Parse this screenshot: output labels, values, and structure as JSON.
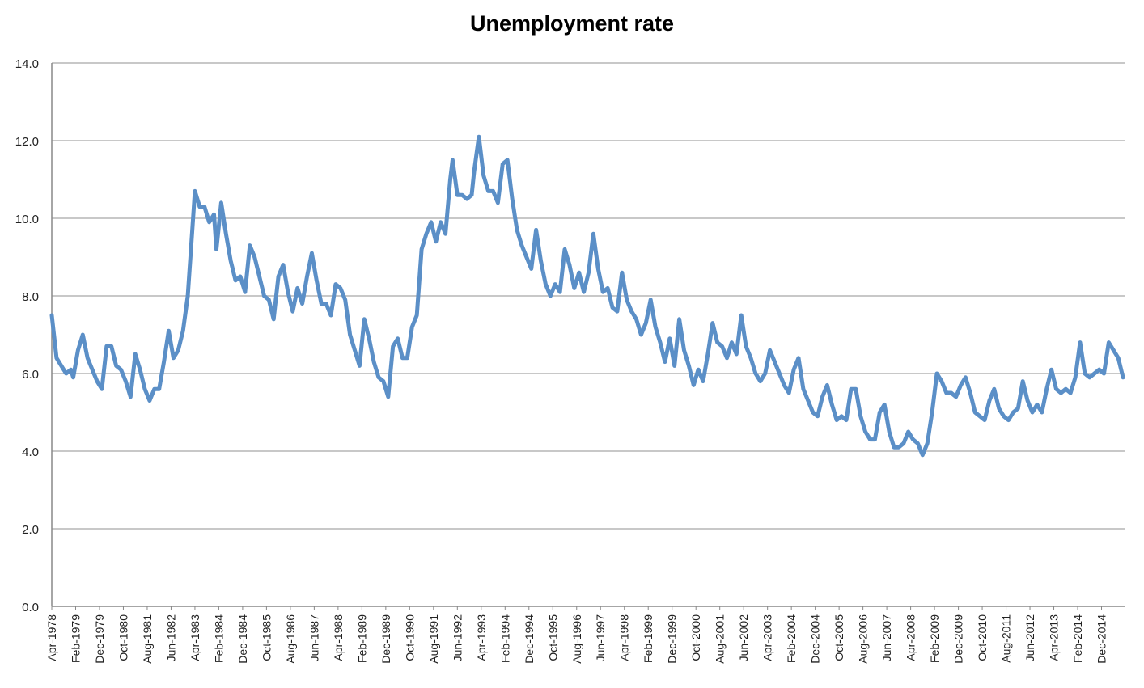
{
  "chart_data": {
    "type": "line",
    "title": "Unemployment rate",
    "xlabel": "",
    "ylabel": "",
    "ylim": [
      0,
      14
    ],
    "y_ticks": [
      "0.0",
      "2.0",
      "4.0",
      "6.0",
      "8.0",
      "10.0",
      "12.0",
      "14.0"
    ],
    "x_tick_labels": [
      "Apr-1978",
      "Feb-1979",
      "Dec-1979",
      "Oct-1980",
      "Aug-1981",
      "Jun-1982",
      "Apr-1983",
      "Feb-1984",
      "Dec-1984",
      "Oct-1985",
      "Aug-1986",
      "Jun-1987",
      "Apr-1988",
      "Feb-1989",
      "Dec-1989",
      "Oct-1990",
      "Aug-1991",
      "Jun-1992",
      "Apr-1993",
      "Feb-1994",
      "Dec-1994",
      "Oct-1995",
      "Aug-1996",
      "Jun-1997",
      "Apr-1998",
      "Feb-1999",
      "Dec-1999",
      "Oct-2000",
      "Aug-2001",
      "Jun-2002",
      "Apr-2003",
      "Feb-2004",
      "Dec-2004",
      "Oct-2005",
      "Aug-2006",
      "Jun-2007",
      "Apr-2008",
      "Feb-2009",
      "Dec-2009",
      "Oct-2010",
      "Aug-2011",
      "Jun-2012",
      "Apr-2013",
      "Feb-2014",
      "Dec-2014"
    ],
    "grid": "horizontal",
    "legend": "none",
    "x_range": [
      "Apr-1978",
      "Oct-2015"
    ],
    "series": [
      {
        "color": "#5b8fc7",
        "points": [
          [
            "1978-04",
            7.5
          ],
          [
            "1978-06",
            6.4
          ],
          [
            "1978-08",
            6.2
          ],
          [
            "1978-10",
            6.0
          ],
          [
            "1978-12",
            6.1
          ],
          [
            "1979-01",
            5.9
          ],
          [
            "1979-03",
            6.6
          ],
          [
            "1979-05",
            7.0
          ],
          [
            "1979-07",
            6.4
          ],
          [
            "1979-09",
            6.1
          ],
          [
            "1979-11",
            5.8
          ],
          [
            "1980-01",
            5.6
          ],
          [
            "1980-03",
            6.7
          ],
          [
            "1980-05",
            6.7
          ],
          [
            "1980-07",
            6.2
          ],
          [
            "1980-09",
            6.1
          ],
          [
            "1980-11",
            5.8
          ],
          [
            "1981-01",
            5.4
          ],
          [
            "1981-03",
            6.5
          ],
          [
            "1981-05",
            6.1
          ],
          [
            "1981-07",
            5.6
          ],
          [
            "1981-09",
            5.3
          ],
          [
            "1981-11",
            5.6
          ],
          [
            "1982-01",
            5.6
          ],
          [
            "1982-03",
            6.3
          ],
          [
            "1982-05",
            7.1
          ],
          [
            "1982-07",
            6.4
          ],
          [
            "1982-09",
            6.6
          ],
          [
            "1982-11",
            7.1
          ],
          [
            "1983-01",
            8.0
          ],
          [
            "1983-03",
            9.8
          ],
          [
            "1983-04",
            10.7
          ],
          [
            "1983-06",
            10.3
          ],
          [
            "1983-08",
            10.3
          ],
          [
            "1983-10",
            9.9
          ],
          [
            "1983-12",
            10.1
          ],
          [
            "1984-01",
            9.2
          ],
          [
            "1984-03",
            10.4
          ],
          [
            "1984-05",
            9.6
          ],
          [
            "1984-07",
            8.9
          ],
          [
            "1984-09",
            8.4
          ],
          [
            "1984-11",
            8.5
          ],
          [
            "1985-01",
            8.1
          ],
          [
            "1985-03",
            9.3
          ],
          [
            "1985-05",
            9.0
          ],
          [
            "1985-07",
            8.5
          ],
          [
            "1985-09",
            8.0
          ],
          [
            "1985-11",
            7.9
          ],
          [
            "1986-01",
            7.4
          ],
          [
            "1986-03",
            8.5
          ],
          [
            "1986-05",
            8.8
          ],
          [
            "1986-07",
            8.1
          ],
          [
            "1986-09",
            7.6
          ],
          [
            "1986-11",
            8.2
          ],
          [
            "1987-01",
            7.8
          ],
          [
            "1987-03",
            8.5
          ],
          [
            "1987-05",
            9.1
          ],
          [
            "1987-07",
            8.4
          ],
          [
            "1987-09",
            7.8
          ],
          [
            "1987-11",
            7.8
          ],
          [
            "1988-01",
            7.5
          ],
          [
            "1988-03",
            8.3
          ],
          [
            "1988-05",
            8.2
          ],
          [
            "1988-07",
            7.9
          ],
          [
            "1988-09",
            7.0
          ],
          [
            "1988-11",
            6.6
          ],
          [
            "1989-01",
            6.2
          ],
          [
            "1989-03",
            7.4
          ],
          [
            "1989-05",
            6.9
          ],
          [
            "1989-07",
            6.3
          ],
          [
            "1989-09",
            5.9
          ],
          [
            "1989-11",
            5.8
          ],
          [
            "1990-01",
            5.4
          ],
          [
            "1990-03",
            6.7
          ],
          [
            "1990-05",
            6.9
          ],
          [
            "1990-07",
            6.4
          ],
          [
            "1990-09",
            6.4
          ],
          [
            "1990-11",
            7.2
          ],
          [
            "1991-01",
            7.5
          ],
          [
            "1991-03",
            9.2
          ],
          [
            "1991-05",
            9.6
          ],
          [
            "1991-07",
            9.9
          ],
          [
            "1991-09",
            9.4
          ],
          [
            "1991-11",
            9.9
          ],
          [
            "1992-01",
            9.6
          ],
          [
            "1992-03",
            11.0
          ],
          [
            "1992-04",
            11.5
          ],
          [
            "1992-06",
            10.6
          ],
          [
            "1992-08",
            10.6
          ],
          [
            "1992-10",
            10.5
          ],
          [
            "1992-12",
            10.6
          ],
          [
            "1993-01",
            11.2
          ],
          [
            "1993-03",
            12.1
          ],
          [
            "1993-05",
            11.1
          ],
          [
            "1993-07",
            10.7
          ],
          [
            "1993-09",
            10.7
          ],
          [
            "1993-11",
            10.4
          ],
          [
            "1994-01",
            11.4
          ],
          [
            "1994-03",
            11.5
          ],
          [
            "1994-05",
            10.5
          ],
          [
            "1994-07",
            9.7
          ],
          [
            "1994-09",
            9.3
          ],
          [
            "1994-11",
            9.0
          ],
          [
            "1995-01",
            8.7
          ],
          [
            "1995-03",
            9.7
          ],
          [
            "1995-05",
            8.9
          ],
          [
            "1995-07",
            8.3
          ],
          [
            "1995-09",
            8.0
          ],
          [
            "1995-11",
            8.3
          ],
          [
            "1996-01",
            8.1
          ],
          [
            "1996-03",
            9.2
          ],
          [
            "1996-05",
            8.8
          ],
          [
            "1996-07",
            8.2
          ],
          [
            "1996-09",
            8.6
          ],
          [
            "1996-11",
            8.1
          ],
          [
            "1997-01",
            8.6
          ],
          [
            "1997-03",
            9.6
          ],
          [
            "1997-05",
            8.7
          ],
          [
            "1997-07",
            8.1
          ],
          [
            "1997-09",
            8.2
          ],
          [
            "1997-11",
            7.7
          ],
          [
            "1998-01",
            7.6
          ],
          [
            "1998-03",
            8.6
          ],
          [
            "1998-05",
            7.9
          ],
          [
            "1998-07",
            7.6
          ],
          [
            "1998-09",
            7.4
          ],
          [
            "1998-11",
            7.0
          ],
          [
            "1999-01",
            7.3
          ],
          [
            "1999-03",
            7.9
          ],
          [
            "1999-05",
            7.2
          ],
          [
            "1999-07",
            6.8
          ],
          [
            "1999-09",
            6.3
          ],
          [
            "1999-11",
            6.9
          ],
          [
            "2000-01",
            6.2
          ],
          [
            "2000-03",
            7.4
          ],
          [
            "2000-05",
            6.6
          ],
          [
            "2000-07",
            6.2
          ],
          [
            "2000-09",
            5.7
          ],
          [
            "2000-11",
            6.1
          ],
          [
            "2001-01",
            5.8
          ],
          [
            "2001-03",
            6.5
          ],
          [
            "2001-05",
            7.3
          ],
          [
            "2001-07",
            6.8
          ],
          [
            "2001-09",
            6.7
          ],
          [
            "2001-11",
            6.4
          ],
          [
            "2002-01",
            6.8
          ],
          [
            "2002-03",
            6.5
          ],
          [
            "2002-05",
            7.5
          ],
          [
            "2002-07",
            6.7
          ],
          [
            "2002-09",
            6.4
          ],
          [
            "2002-11",
            6.0
          ],
          [
            "2003-01",
            5.8
          ],
          [
            "2003-03",
            6.0
          ],
          [
            "2003-05",
            6.6
          ],
          [
            "2003-07",
            6.3
          ],
          [
            "2003-09",
            6.0
          ],
          [
            "2003-11",
            5.7
          ],
          [
            "2004-01",
            5.5
          ],
          [
            "2004-03",
            6.1
          ],
          [
            "2004-05",
            6.4
          ],
          [
            "2004-07",
            5.6
          ],
          [
            "2004-09",
            5.3
          ],
          [
            "2004-11",
            5.0
          ],
          [
            "2005-01",
            4.9
          ],
          [
            "2005-03",
            5.4
          ],
          [
            "2005-05",
            5.7
          ],
          [
            "2005-07",
            5.2
          ],
          [
            "2005-09",
            4.8
          ],
          [
            "2005-11",
            4.9
          ],
          [
            "2006-01",
            4.8
          ],
          [
            "2006-03",
            5.6
          ],
          [
            "2006-05",
            5.6
          ],
          [
            "2006-07",
            4.9
          ],
          [
            "2006-09",
            4.5
          ],
          [
            "2006-11",
            4.3
          ],
          [
            "2007-01",
            4.3
          ],
          [
            "2007-03",
            5.0
          ],
          [
            "2007-05",
            5.2
          ],
          [
            "2007-07",
            4.5
          ],
          [
            "2007-09",
            4.1
          ],
          [
            "2007-11",
            4.1
          ],
          [
            "2008-01",
            4.2
          ],
          [
            "2008-03",
            4.5
          ],
          [
            "2008-05",
            4.3
          ],
          [
            "2008-07",
            4.2
          ],
          [
            "2008-09",
            3.9
          ],
          [
            "2008-11",
            4.2
          ],
          [
            "2009-01",
            5.0
          ],
          [
            "2009-03",
            6.0
          ],
          [
            "2009-05",
            5.8
          ],
          [
            "2009-07",
            5.5
          ],
          [
            "2009-09",
            5.5
          ],
          [
            "2009-11",
            5.4
          ],
          [
            "2010-01",
            5.7
          ],
          [
            "2010-03",
            5.9
          ],
          [
            "2010-05",
            5.5
          ],
          [
            "2010-07",
            5.0
          ],
          [
            "2010-09",
            4.9
          ],
          [
            "2010-11",
            4.8
          ],
          [
            "2011-01",
            5.3
          ],
          [
            "2011-03",
            5.6
          ],
          [
            "2011-05",
            5.1
          ],
          [
            "2011-07",
            4.9
          ],
          [
            "2011-09",
            4.8
          ],
          [
            "2011-11",
            5.0
          ],
          [
            "2012-01",
            5.1
          ],
          [
            "2012-03",
            5.8
          ],
          [
            "2012-05",
            5.3
          ],
          [
            "2012-07",
            5.0
          ],
          [
            "2012-09",
            5.2
          ],
          [
            "2012-11",
            5.0
          ],
          [
            "2013-01",
            5.6
          ],
          [
            "2013-03",
            6.1
          ],
          [
            "2013-05",
            5.6
          ],
          [
            "2013-07",
            5.5
          ],
          [
            "2013-09",
            5.6
          ],
          [
            "2013-11",
            5.5
          ],
          [
            "2014-01",
            5.9
          ],
          [
            "2014-03",
            6.8
          ],
          [
            "2014-05",
            6.0
          ],
          [
            "2014-07",
            5.9
          ],
          [
            "2014-09",
            6.0
          ],
          [
            "2014-11",
            6.1
          ],
          [
            "2015-01",
            6.0
          ],
          [
            "2015-03",
            6.8
          ],
          [
            "2015-05",
            6.6
          ],
          [
            "2015-07",
            6.4
          ],
          [
            "2015-09",
            5.9
          ]
        ]
      }
    ]
  }
}
